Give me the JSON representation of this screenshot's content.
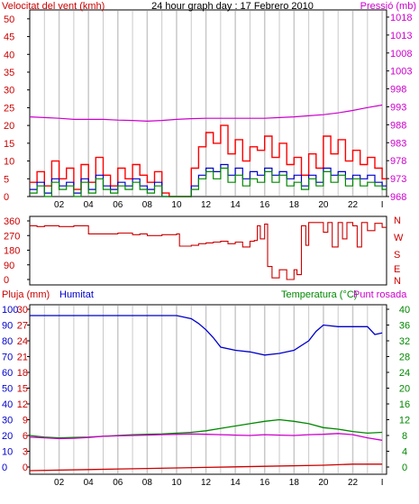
{
  "chart_data": [
    {
      "type": "line",
      "title": "24 hour graph day : 17 Febrero 2010",
      "left_axis_title": "Velocitat del vent (kmh)",
      "right_axis_title": "Pressió (mb)",
      "left_ticks": [
        0,
        5,
        10,
        15,
        20,
        25,
        30,
        35,
        40,
        45,
        50
      ],
      "right_ticks": [
        968,
        973,
        978,
        983,
        988,
        993,
        998,
        1003,
        1008,
        1013,
        1018
      ],
      "ylim_left": [
        0,
        52.5
      ],
      "ylim_right": [
        968,
        1020
      ],
      "x_ticks": [
        "02",
        "04",
        "06",
        "08",
        "10",
        "12",
        "14",
        "16",
        "18",
        "20",
        "22",
        "I"
      ],
      "xlim_hours": [
        0,
        24.3
      ],
      "colors": {
        "gust": "#ff0000",
        "average": "#0000cc",
        "speed": "#008800",
        "pressure": "#cc00cc",
        "grid": "#c8c8c8",
        "axis_left": "#cc0000",
        "axis_right": "#cc00cc"
      },
      "series": [
        {
          "key": "gust",
          "x": [
            0,
            0.5,
            1,
            1.5,
            2,
            2.5,
            3,
            3.5,
            4,
            4.5,
            5,
            5.5,
            6,
            6.5,
            7,
            7.5,
            8,
            8.5,
            9,
            9.5,
            10,
            10.5,
            11,
            11.5,
            12,
            12.5,
            13,
            13.5,
            14,
            14.5,
            15,
            15.5,
            16,
            16.5,
            17,
            17.5,
            18,
            18.5,
            19,
            19.5,
            20,
            20.5,
            21,
            21.5,
            22,
            22.5,
            23,
            23.5,
            24
          ],
          "values": [
            4,
            7,
            3,
            10,
            5,
            8,
            2,
            9,
            4,
            11,
            6,
            3,
            8,
            5,
            9,
            6,
            4,
            7,
            1,
            0,
            0,
            0,
            8,
            14,
            18,
            15,
            20,
            12,
            16,
            10,
            14,
            13,
            17,
            11,
            15,
            9,
            11,
            6,
            12,
            8,
            17,
            12,
            16,
            10,
            13,
            9,
            11,
            8,
            5
          ]
        },
        {
          "key": "average",
          "x": [
            0,
            0.5,
            1,
            1.5,
            2,
            2.5,
            3,
            3.5,
            4,
            4.5,
            5,
            5.5,
            6,
            6.5,
            7,
            7.5,
            8,
            8.5,
            9,
            9.5,
            10,
            10.5,
            11,
            11.5,
            12,
            12.5,
            13,
            13.5,
            14,
            14.5,
            15,
            15.5,
            16,
            16.5,
            17,
            17.5,
            18,
            18.5,
            19,
            19.5,
            20,
            20.5,
            21,
            21.5,
            22,
            22.5,
            23,
            23.5,
            24
          ],
          "values": [
            2,
            4,
            1,
            5,
            3,
            4,
            1,
            5,
            2,
            6,
            3,
            2,
            4,
            3,
            5,
            3,
            2,
            4,
            0,
            0,
            0,
            0,
            3,
            6,
            8,
            7,
            9,
            6,
            8,
            5,
            7,
            6,
            8,
            6,
            7,
            5,
            6,
            3,
            6,
            4,
            8,
            6,
            7,
            5,
            6,
            5,
            6,
            4,
            3
          ]
        },
        {
          "key": "speed",
          "x": [
            0,
            0.5,
            1,
            1.5,
            2,
            2.5,
            3,
            3.5,
            4,
            4.5,
            5,
            5.5,
            6,
            6.5,
            7,
            7.5,
            8,
            8.5,
            9,
            9.5,
            10,
            10.5,
            11,
            11.5,
            12,
            12.5,
            13,
            13.5,
            14,
            14.5,
            15,
            15.5,
            16,
            16.5,
            17,
            17.5,
            18,
            18.5,
            19,
            19.5,
            20,
            20.5,
            21,
            21.5,
            22,
            22.5,
            23,
            23.5,
            24
          ],
          "values": [
            1,
            3,
            0,
            4,
            2,
            3,
            0,
            4,
            1,
            5,
            2,
            1,
            3,
            2,
            4,
            2,
            1,
            3,
            0,
            0,
            0,
            0,
            2,
            5,
            7,
            5,
            8,
            4,
            6,
            3,
            5,
            4,
            7,
            4,
            6,
            3,
            4,
            2,
            5,
            3,
            7,
            4,
            6,
            3,
            5,
            3,
            4,
            3,
            2
          ]
        },
        {
          "key": "pressure",
          "x": [
            0,
            1,
            2,
            3,
            4,
            5,
            6,
            7,
            8,
            9,
            10,
            11,
            12,
            13,
            14,
            15,
            16,
            17,
            18,
            19,
            20,
            21,
            22,
            23,
            24
          ],
          "values": [
            990.2,
            990.0,
            989.8,
            989.5,
            989.5,
            989.5,
            989.3,
            989.2,
            989.0,
            989.2,
            989.5,
            989.7,
            989.8,
            989.8,
            989.8,
            989.8,
            989.8,
            990.0,
            990.2,
            990.5,
            990.8,
            991.3,
            992.0,
            992.8,
            993.5
          ]
        }
      ]
    },
    {
      "type": "line",
      "left_ticks": [
        0,
        90,
        180,
        270,
        360
      ],
      "right_ticks": [
        "N",
        "W",
        "S",
        "E",
        "N"
      ],
      "ylim": [
        0,
        360
      ],
      "color": "#cc0000",
      "series": [
        {
          "key": "direction",
          "x": [
            0,
            0.5,
            1,
            2,
            3,
            3.5,
            4,
            5,
            6,
            7,
            7.5,
            8,
            9,
            10,
            10.2,
            11,
            11.5,
            12,
            12.5,
            13,
            13.5,
            14,
            14.5,
            15,
            15.3,
            15.5,
            15.7,
            16,
            16.2,
            16.5,
            17,
            17.5,
            18,
            18.2,
            18.5,
            18.8,
            19,
            19.5,
            20,
            20.3,
            20.6,
            21,
            21.3,
            21.6,
            22,
            22.3,
            22.6,
            23,
            23.5,
            24
          ],
          "values": [
            330,
            325,
            330,
            325,
            330,
            330,
            280,
            280,
            285,
            275,
            280,
            270,
            275,
            280,
            205,
            210,
            220,
            225,
            230,
            235,
            220,
            230,
            200,
            235,
            240,
            330,
            250,
            340,
            80,
            10,
            60,
            0,
            60,
            30,
            330,
            210,
            350,
            350,
            290,
            350,
            200,
            350,
            250,
            350,
            330,
            200,
            350,
            300,
            345,
            320
          ]
        }
      ]
    },
    {
      "type": "line",
      "title_rain": "Pluja (mm)",
      "title_humidity": "Humitat",
      "title_temperature": "Temperatura (°C)",
      "title_dewpoint": "Punt rosada",
      "left_ticks_rain": [
        0,
        3,
        6,
        9,
        12,
        15,
        18,
        21,
        24,
        27,
        30
      ],
      "left_ticks_humidity": [
        0,
        10,
        20,
        30,
        40,
        50,
        60,
        70,
        80,
        90,
        100
      ],
      "right_ticks": [
        0,
        4,
        8,
        12,
        16,
        20,
        24,
        28,
        32,
        36,
        40
      ],
      "ylim_humidity": [
        0,
        100
      ],
      "ylim_temperature": [
        0,
        40
      ],
      "x_ticks": [
        "02",
        "04",
        "06",
        "08",
        "10",
        "12",
        "14",
        "16",
        "18",
        "20",
        "22",
        "I"
      ],
      "colors": {
        "humidity": "#0000cc",
        "temperature": "#008800",
        "dewpoint": "#cc00cc",
        "rain": "#cc0000",
        "axis_left_rain": "#cc0000",
        "axis_left_humidity": "#0000cc",
        "axis_right": "#008800"
      },
      "series": [
        {
          "key": "humidity",
          "x": [
            0,
            1,
            2,
            3,
            4,
            5,
            6,
            7,
            8,
            9,
            10,
            11,
            11.5,
            12,
            12.5,
            13,
            14,
            15,
            16,
            17,
            18,
            19,
            19.5,
            20,
            21,
            22,
            23,
            23.5,
            24
          ],
          "values": [
            96,
            96,
            96,
            96,
            96,
            96,
            96,
            96,
            96,
            96,
            96,
            94,
            91,
            87,
            82,
            76,
            74,
            73,
            71,
            72,
            74,
            80,
            86,
            90,
            89,
            89,
            89,
            84,
            85
          ]
        },
        {
          "key": "temperature",
          "x": [
            0,
            1,
            2,
            3,
            4,
            5,
            6,
            7,
            8,
            9,
            10,
            11,
            12,
            13,
            14,
            15,
            16,
            17,
            18,
            19,
            20,
            21,
            22,
            23,
            24
          ],
          "values": [
            8.0,
            7.6,
            7.4,
            7.5,
            7.6,
            7.8,
            8.0,
            8.2,
            8.3,
            8.4,
            8.6,
            8.8,
            9.2,
            9.8,
            10.4,
            11.0,
            11.6,
            12.0,
            11.6,
            11.0,
            10.0,
            9.6,
            9.0,
            8.6,
            8.8
          ]
        },
        {
          "key": "dewpoint",
          "x": [
            0,
            1,
            2,
            3,
            4,
            5,
            6,
            7,
            8,
            9,
            10,
            11,
            12,
            13,
            14,
            15,
            16,
            17,
            18,
            19,
            20,
            21,
            22,
            23,
            24
          ],
          "values": [
            7.6,
            7.4,
            7.2,
            7.3,
            7.5,
            7.8,
            7.9,
            8.0,
            8.1,
            8.2,
            8.3,
            8.4,
            8.3,
            8.2,
            8.1,
            8.0,
            8.2,
            8.1,
            8.0,
            8.2,
            8.3,
            8.5,
            8.2,
            7.4,
            6.8
          ]
        },
        {
          "key": "rain",
          "x": [
            0,
            4,
            8,
            12,
            16,
            20,
            22,
            24
          ],
          "values": [
            0.0,
            0.2,
            0.4,
            0.6,
            0.8,
            1.0,
            1.2,
            1.2
          ]
        }
      ]
    }
  ]
}
